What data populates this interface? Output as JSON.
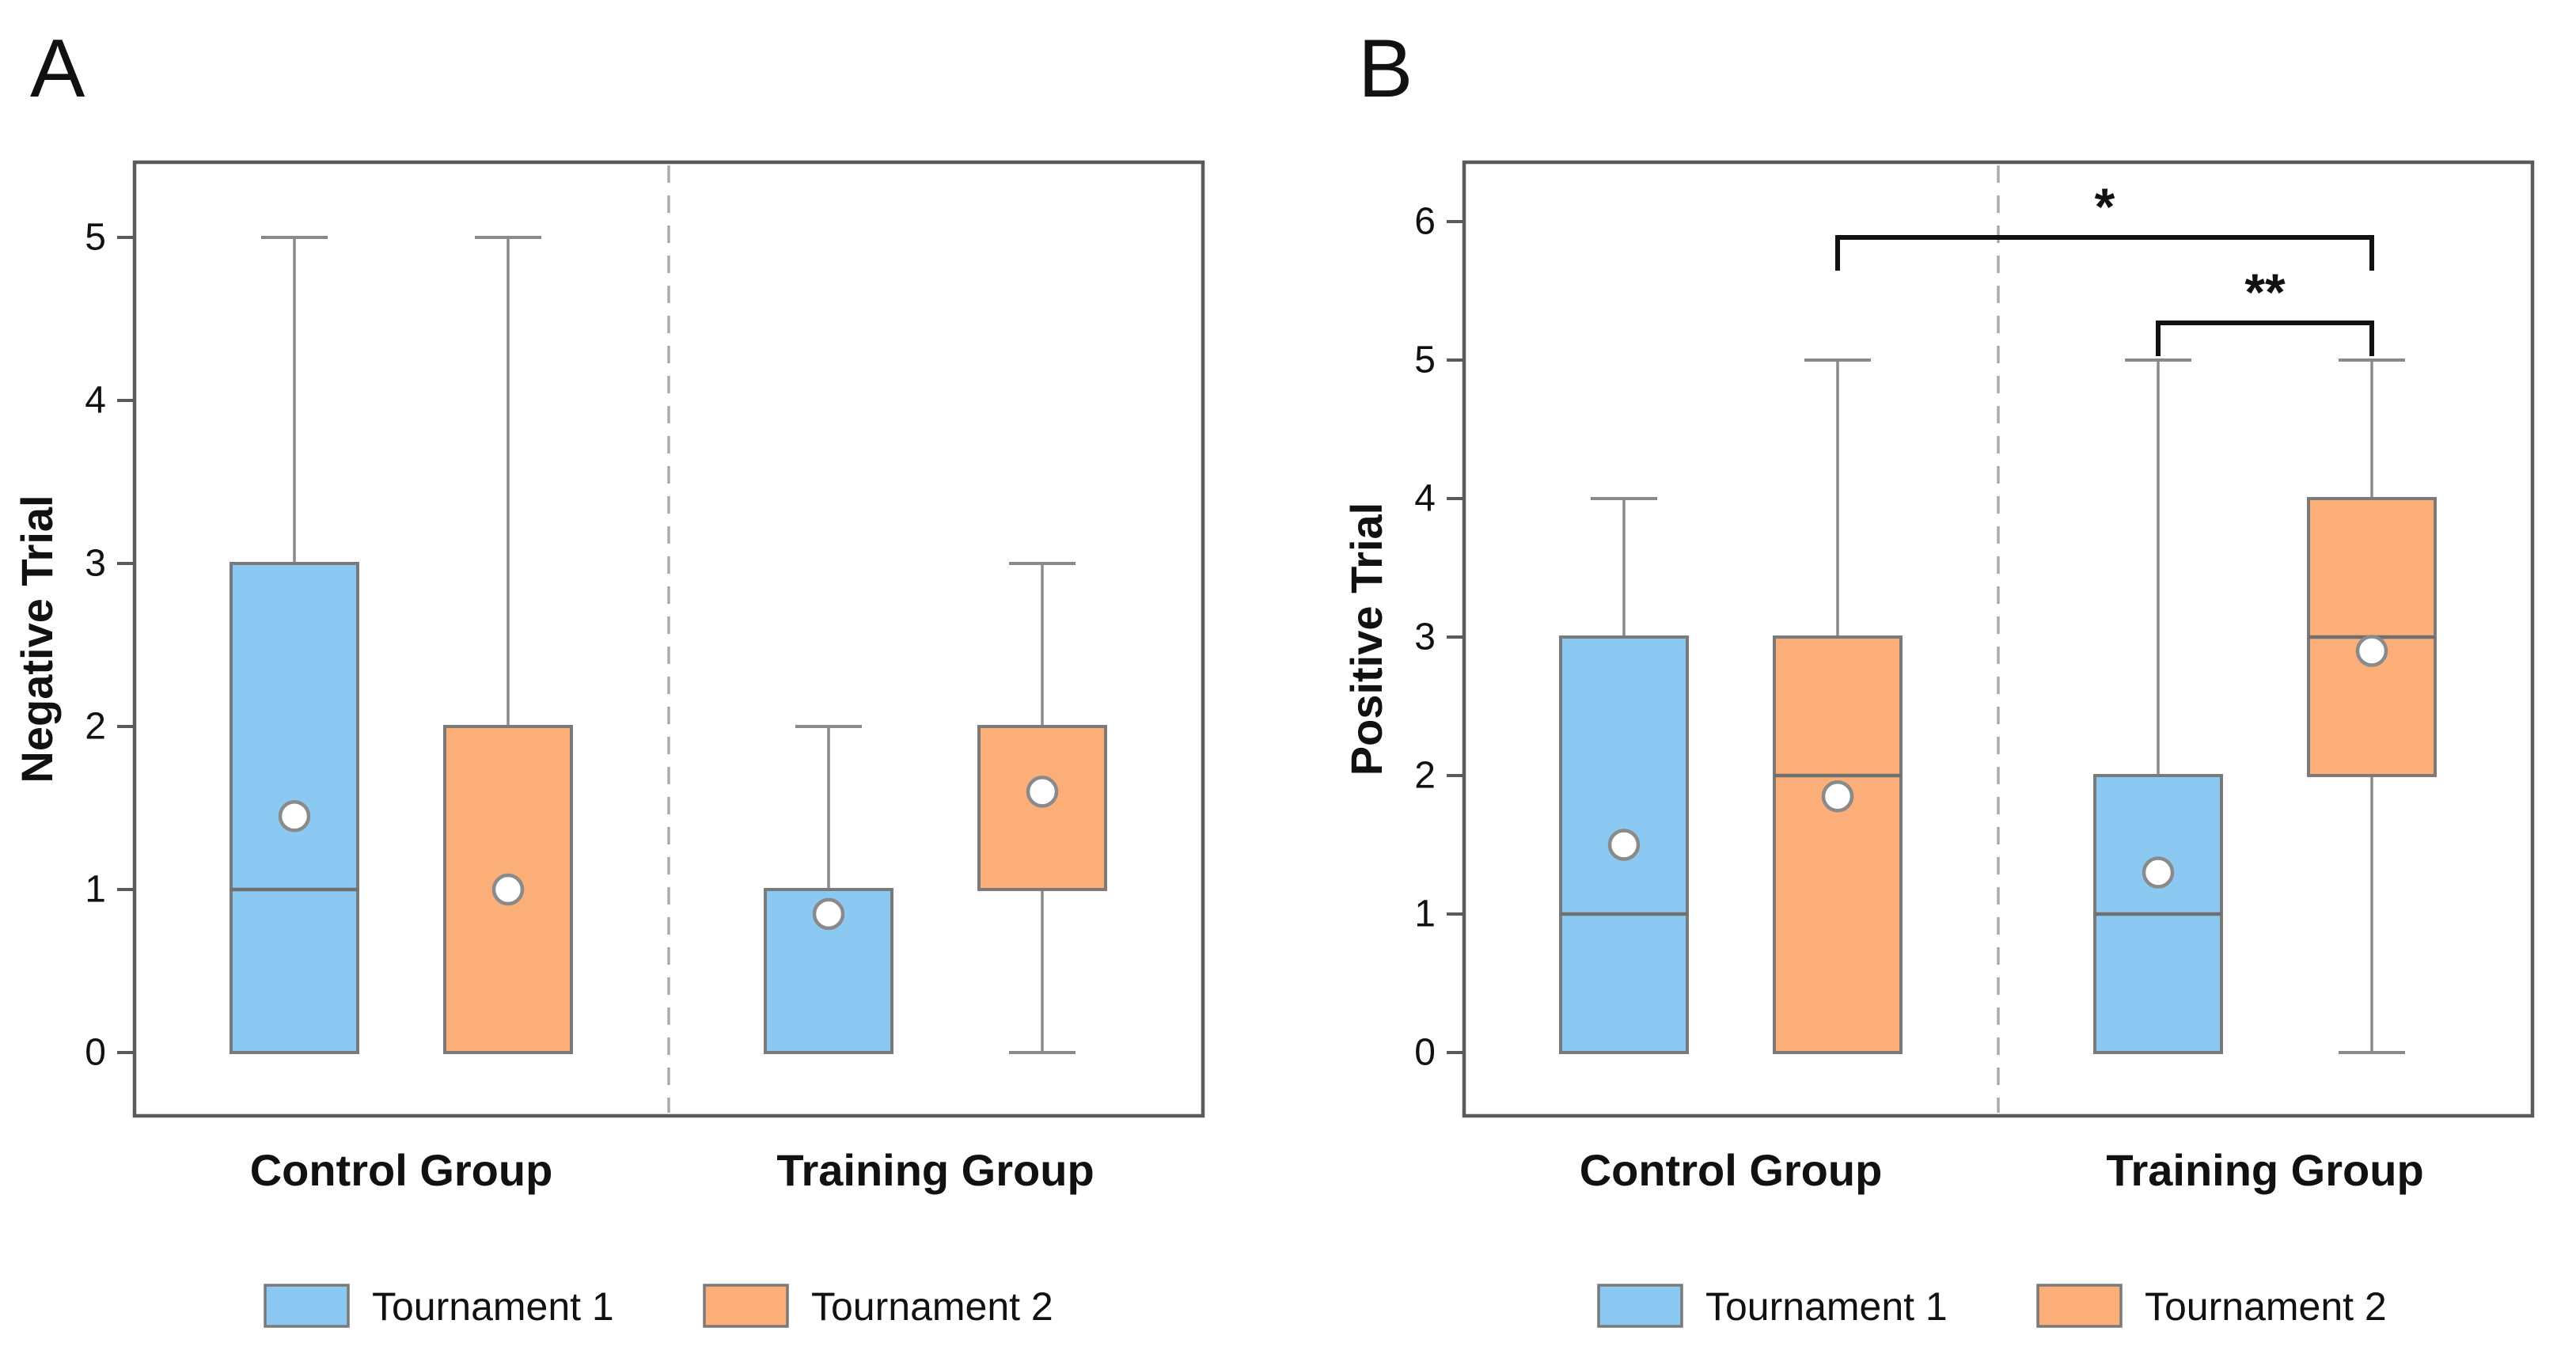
{
  "chart_data": [
    {
      "type": "boxplot",
      "panel_label": "A",
      "ylabel": "Negative Trial",
      "xlabel": "",
      "ylim": [
        -0.4,
        5.55
      ],
      "yticks": [
        0,
        1,
        2,
        3,
        4,
        5
      ],
      "categories": [
        "Control Group",
        "Training Group"
      ],
      "series_names": [
        "Tournament 1",
        "Tournament 2"
      ],
      "grid": false,
      "legend_position": "bottom",
      "legend": [
        "Tournament 1",
        "Tournament 2"
      ],
      "boxes": [
        {
          "group": "Control Group",
          "series": "Tournament 1",
          "whisker_low": 0,
          "q1": 0,
          "median": 1,
          "q3": 3,
          "whisker_high": 5,
          "mean": 1.45
        },
        {
          "group": "Control Group",
          "series": "Tournament 2",
          "whisker_low": 0,
          "q1": 0,
          "median": null,
          "q3": 2,
          "whisker_high": 5,
          "mean": 1.0
        },
        {
          "group": "Training Group",
          "series": "Tournament 1",
          "whisker_low": 0,
          "q1": 0,
          "median": null,
          "q3": 1,
          "whisker_high": 2,
          "mean": 0.85
        },
        {
          "group": "Training Group",
          "series": "Tournament 2",
          "whisker_low": 0,
          "q1": 1,
          "median": null,
          "q3": 2,
          "whisker_high": 3,
          "mean": 1.6
        }
      ],
      "significance_brackets": []
    },
    {
      "type": "boxplot",
      "panel_label": "B",
      "ylabel": "Positive Trial",
      "xlabel": "",
      "ylim": [
        -0.4,
        6.45
      ],
      "yticks": [
        0,
        1,
        2,
        3,
        4,
        5,
        6
      ],
      "categories": [
        "Control Group",
        "Training Group"
      ],
      "series_names": [
        "Tournament 1",
        "Tournament 2"
      ],
      "grid": false,
      "legend_position": "bottom",
      "legend": [
        "Tournament 1",
        "Tournament 2"
      ],
      "boxes": [
        {
          "group": "Control Group",
          "series": "Tournament 1",
          "whisker_low": 0,
          "q1": 0,
          "median": 1,
          "q3": 3,
          "whisker_high": 4,
          "mean": 1.5
        },
        {
          "group": "Control Group",
          "series": "Tournament 2",
          "whisker_low": 0,
          "q1": 0,
          "median": 2,
          "q3": 3,
          "whisker_high": 5,
          "mean": 1.85
        },
        {
          "group": "Training Group",
          "series": "Tournament 1",
          "whisker_low": 0,
          "q1": 0,
          "median": 1,
          "q3": 2,
          "whisker_high": 5,
          "mean": 1.3
        },
        {
          "group": "Training Group",
          "series": "Tournament 2",
          "whisker_low": 0,
          "q1": 2,
          "median": 3,
          "q3": 4,
          "whisker_high": 5,
          "mean": 2.9
        }
      ],
      "significance_brackets": [
        {
          "label": "*",
          "from": {
            "group": "Control Group",
            "series": "Tournament 2"
          },
          "to": {
            "group": "Training Group",
            "series": "Tournament 2"
          },
          "level": 1
        },
        {
          "label": "**",
          "from": {
            "group": "Training Group",
            "series": "Tournament 1"
          },
          "to": {
            "group": "Training Group",
            "series": "Tournament 2"
          },
          "level": 2
        }
      ]
    }
  ],
  "style": {
    "series_colors": {
      "Tournament 1": "#8CC9F2",
      "Tournament 2": "#FBAE78"
    },
    "box_border": "#7a7a7a",
    "whisker_color": "#8a8a8a",
    "median_color": "#6f6f6f",
    "frame_color": "#5a5a5a",
    "divider_color": "#ababab",
    "bracket_color": "#111111",
    "mean_marker": "white-circle-gray-border",
    "background": "#ffffff",
    "text_color": "#111111"
  }
}
